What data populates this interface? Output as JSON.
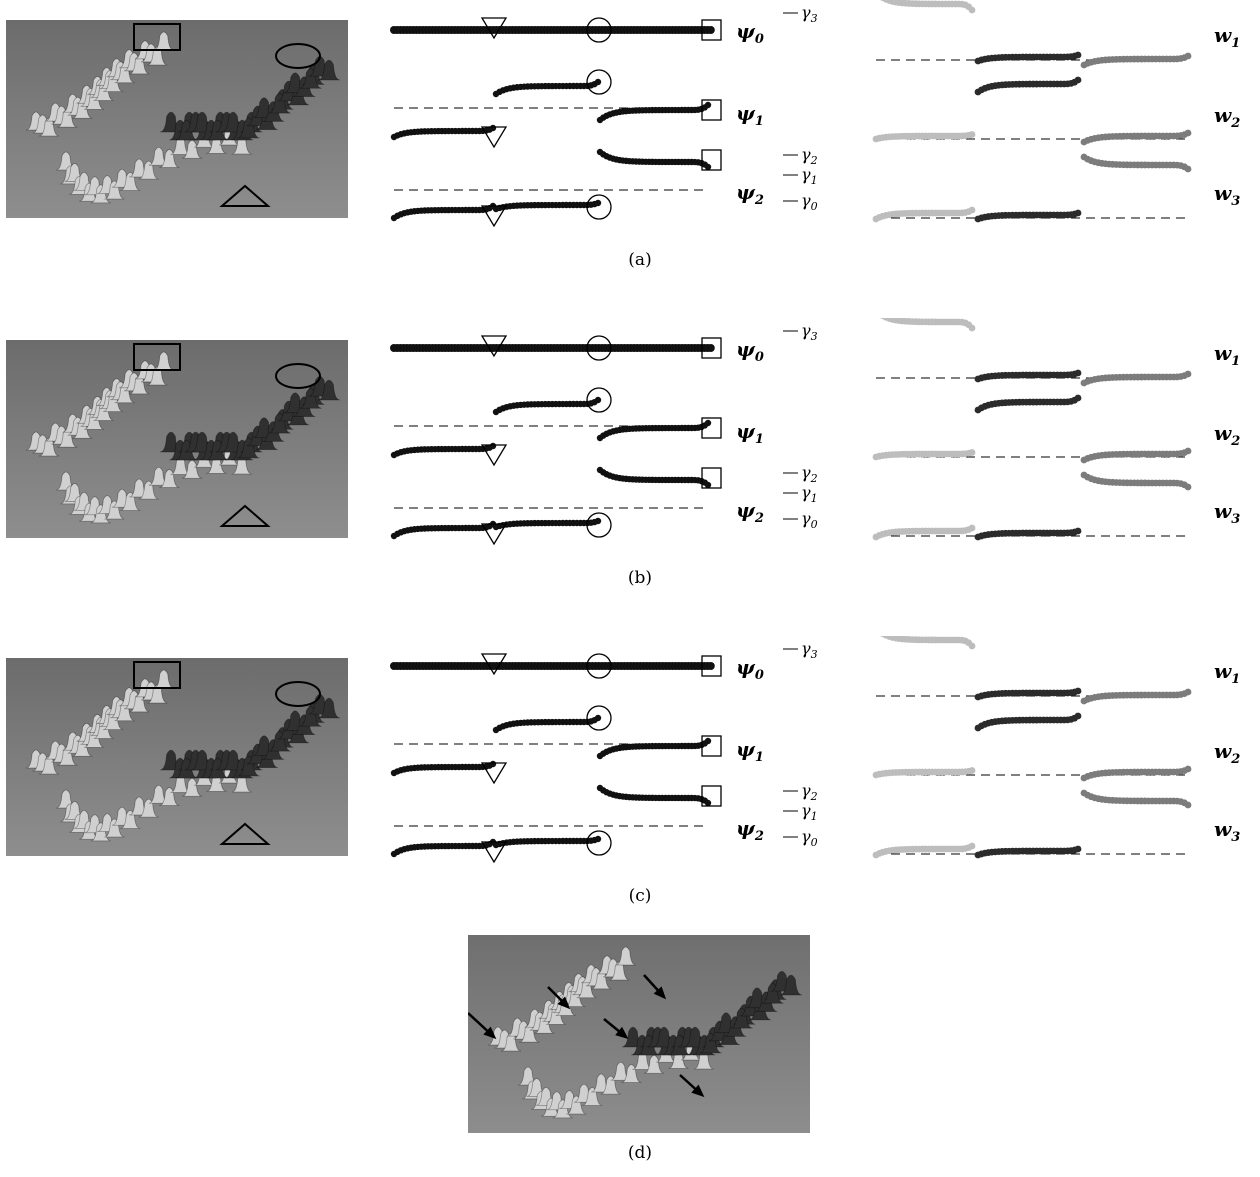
{
  "panels": [
    {
      "label": "(a)",
      "psi": [
        "ψ",
        "ψ",
        "ψ"
      ],
      "psi_sub": [
        "0",
        "1",
        "2"
      ],
      "w": [
        "w",
        "w",
        "w"
      ],
      "w_sub": [
        "1",
        "2",
        "3"
      ],
      "gamma": [
        "γ",
        "γ",
        "γ",
        "γ"
      ],
      "gamma_sub": [
        "3",
        "2",
        "1",
        "0"
      ]
    },
    {
      "label": "(b)",
      "psi": [
        "ψ",
        "ψ",
        "ψ"
      ],
      "psi_sub": [
        "0",
        "1",
        "2"
      ],
      "w": [
        "w",
        "w",
        "w"
      ],
      "w_sub": [
        "1",
        "2",
        "3"
      ],
      "gamma": [
        "γ",
        "γ",
        "γ",
        "γ"
      ],
      "gamma_sub": [
        "3",
        "2",
        "1",
        "0"
      ]
    },
    {
      "label": "(c)",
      "psi": [
        "ψ",
        "ψ",
        "ψ"
      ],
      "psi_sub": [
        "0",
        "1",
        "2"
      ],
      "w": [
        "w",
        "w",
        "w"
      ],
      "w_sub": [
        "1",
        "2",
        "3"
      ],
      "gamma": [
        "γ",
        "γ",
        "γ",
        "γ"
      ],
      "gamma_sub": [
        "3",
        "2",
        "1",
        "0"
      ]
    }
  ],
  "panel_d": {
    "label": "(d)"
  },
  "colors": {
    "dark": "#2b2b2b",
    "mid": "#7c7c7c",
    "light": "#bdbdbd",
    "plate": "#808080"
  }
}
